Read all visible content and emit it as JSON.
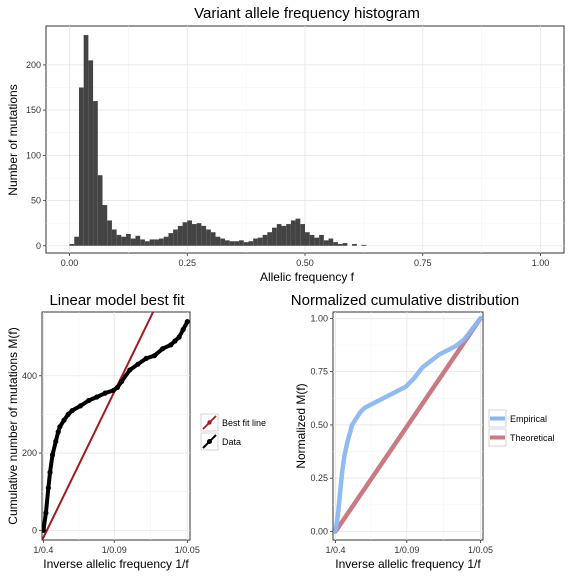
{
  "chart_data": [
    {
      "type": "bar",
      "title": "Variant allele frequency histogram",
      "xlabel": "Allelic frequency f",
      "ylabel": "Number of mutations",
      "xlim": [
        -0.05,
        1.05
      ],
      "ylim": [
        -8,
        243
      ],
      "xticks": [
        0.0,
        0.25,
        0.5,
        0.75,
        1.0
      ],
      "xtick_labels": [
        "0.00",
        "0.25",
        "0.50",
        "0.75",
        "1.00"
      ],
      "yticks": [
        0,
        50,
        100,
        150,
        200
      ],
      "ytick_labels": [
        "0",
        "50",
        "100",
        "150",
        "200"
      ],
      "grid": true,
      "bar_color": "#444444",
      "bin_width": 0.01,
      "bins_x": [
        0.0,
        0.01,
        0.02,
        0.03,
        0.04,
        0.05,
        0.06,
        0.07,
        0.08,
        0.09,
        0.1,
        0.11,
        0.12,
        0.13,
        0.14,
        0.15,
        0.16,
        0.17,
        0.18,
        0.19,
        0.2,
        0.21,
        0.22,
        0.23,
        0.24,
        0.25,
        0.26,
        0.27,
        0.28,
        0.29,
        0.3,
        0.31,
        0.32,
        0.33,
        0.34,
        0.35,
        0.36,
        0.37,
        0.38,
        0.39,
        0.4,
        0.41,
        0.42,
        0.43,
        0.44,
        0.45,
        0.46,
        0.47,
        0.48,
        0.49,
        0.5,
        0.51,
        0.52,
        0.53,
        0.54,
        0.55,
        0.56,
        0.57,
        0.58,
        0.59,
        0.6,
        0.61,
        0.62
      ],
      "values": [
        2,
        10,
        175,
        233,
        205,
        160,
        78,
        45,
        28,
        18,
        12,
        10,
        13,
        8,
        11,
        7,
        5,
        7,
        7,
        8,
        10,
        14,
        18,
        22,
        26,
        28,
        24,
        25,
        22,
        18,
        15,
        10,
        8,
        6,
        5,
        5,
        6,
        4,
        5,
        8,
        9,
        12,
        15,
        20,
        24,
        22,
        24,
        28,
        30,
        24,
        15,
        12,
        9,
        12,
        6,
        8,
        4,
        2,
        3,
        0,
        2,
        0,
        1
      ]
    },
    {
      "type": "scatter",
      "title": "Linear model best fit",
      "xlabel": "Inverse allelic frequency 1/f",
      "ylabel": "Cumulative number of mutations M(f)",
      "xlim": [
        2.325,
        20.325
      ],
      "ylim": [
        -25,
        565
      ],
      "xticks": [
        2.5,
        11.1111,
        20.0
      ],
      "xtick_labels": [
        "1/0.4",
        "1/0.09",
        "1/0.05"
      ],
      "yticks": [
        0,
        200,
        400
      ],
      "ytick_labels": [
        "0",
        "200",
        "400"
      ],
      "grid": true,
      "legend_position": "right",
      "series": [
        {
          "name": "Best fit line",
          "kind": "line",
          "color": "#a31a1f",
          "x": [
            2.35,
            15.84
          ],
          "y": [
            -25,
            565
          ]
        },
        {
          "name": "Data",
          "kind": "points",
          "color": "#000000",
          "x": [
            2.5,
            2.8,
            3.1,
            3.3,
            3.6,
            4.0,
            4.3,
            4.5,
            5.0,
            5.5,
            6.0,
            7.0,
            8.0,
            9.0,
            10.0,
            11.0,
            11.5,
            12.0,
            13.0,
            14.0,
            15.0,
            16.0,
            17.0,
            18.0,
            18.5,
            19.0,
            19.5,
            20.0
          ],
          "y": [
            0,
            45,
            110,
            150,
            195,
            230,
            255,
            268,
            285,
            300,
            310,
            322,
            336,
            345,
            355,
            362,
            370,
            385,
            415,
            430,
            445,
            452,
            470,
            480,
            490,
            500,
            520,
            540
          ]
        }
      ]
    },
    {
      "type": "line",
      "title": "Normalized cumulative distribution",
      "xlabel": "Inverse allelic frequency 1/f",
      "ylabel": "Normalized M(f)",
      "xlim": [
        2.2,
        20.3
      ],
      "ylim": [
        -0.04,
        1.03
      ],
      "xticks": [
        2.5,
        11.1111,
        20.0
      ],
      "xtick_labels": [
        "1/0.4",
        "1/0.09",
        "1/0.05"
      ],
      "yticks": [
        0.0,
        0.25,
        0.5,
        0.75,
        1.0
      ],
      "ytick_labels": [
        "0.00",
        "0.25",
        "0.50",
        "0.75",
        "1.00"
      ],
      "grid": true,
      "legend_position": "right",
      "series": [
        {
          "name": "Empirical",
          "color": "#8ab7f2",
          "x": [
            2.5,
            2.8,
            3.1,
            3.3,
            3.6,
            4.0,
            4.3,
            4.5,
            5.0,
            5.5,
            6.0,
            7.0,
            8.0,
            9.0,
            10.0,
            11.0,
            12.0,
            13.0,
            14.0,
            15.0,
            16.0,
            17.0,
            18.0,
            19.0,
            20.0
          ],
          "y": [
            0.0,
            0.08,
            0.2,
            0.28,
            0.36,
            0.43,
            0.47,
            0.5,
            0.53,
            0.56,
            0.58,
            0.6,
            0.62,
            0.64,
            0.66,
            0.68,
            0.72,
            0.77,
            0.8,
            0.83,
            0.85,
            0.87,
            0.9,
            0.95,
            1.0
          ]
        },
        {
          "name": "Theoretical",
          "color": "#c97a82",
          "x": [
            2.5,
            20.0
          ],
          "y": [
            0.0,
            1.0
          ]
        }
      ]
    }
  ]
}
